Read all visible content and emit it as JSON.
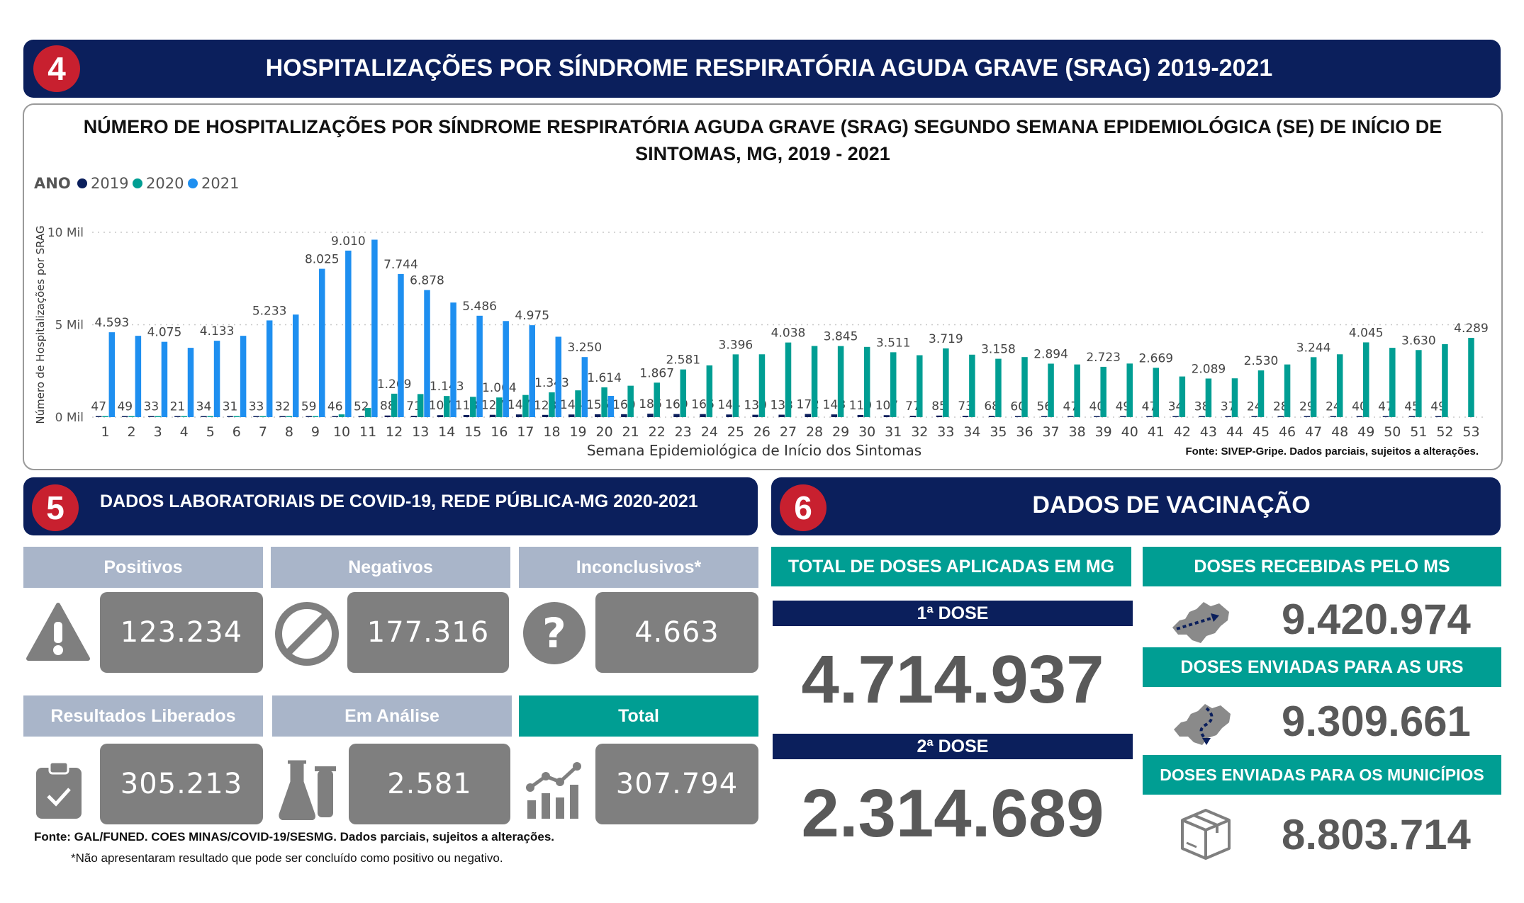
{
  "section4": {
    "number": "4",
    "title": "HOSPITALIZAÇÕES POR SÍNDROME RESPIRATÓRIA AGUDA GRAVE (SRAG) 2019-2021"
  },
  "chart_data": {
    "type": "bar",
    "title": "NÚMERO DE HOSPITALIZAÇÕES POR SÍNDROME RESPIRATÓRIA AGUDA GRAVE (SRAG) SEGUNDO SEMANA EPIDEMIOLÓGICA (SE) DE INÍCIO DE SINTOMAS, MG, 2019 - 2021",
    "legend_title": "ANO",
    "legend_position": "top-left",
    "xlabel": "Semana Epidemiológica de Início dos Sintomas",
    "ylabel": "Número de Hospitalizações por SRAG",
    "yticks": [
      "0 Mil",
      "5 Mil",
      "10 Mil"
    ],
    "ylim": [
      0,
      10000
    ],
    "grid": true,
    "source": "Fonte: SIVEP-Gripe. Dados parciais, sujeitos a alterações.",
    "categories": [
      "1",
      "2",
      "3",
      "4",
      "5",
      "6",
      "7",
      "8",
      "9",
      "10",
      "11",
      "12",
      "13",
      "14",
      "15",
      "16",
      "17",
      "18",
      "19",
      "20",
      "21",
      "22",
      "23",
      "24",
      "25",
      "26",
      "27",
      "28",
      "29",
      "30",
      "31",
      "32",
      "33",
      "34",
      "35",
      "36",
      "37",
      "38",
      "39",
      "40",
      "41",
      "42",
      "43",
      "44",
      "45",
      "46",
      "47",
      "48",
      "49",
      "50",
      "51",
      "52",
      "53"
    ],
    "series": [
      {
        "name": "2019",
        "color": "#0b1f5c",
        "values": [
          47,
          49,
          33,
          21,
          34,
          31,
          33,
          32,
          59,
          46,
          52,
          88,
          71,
          107,
          118,
          127,
          147,
          123,
          144,
          155,
          160,
          186,
          169,
          166,
          144,
          130,
          133,
          172,
          148,
          119,
          107,
          77,
          85,
          73,
          68,
          60,
          56,
          47,
          40,
          49,
          47,
          34,
          38,
          37,
          24,
          28,
          29,
          24,
          40,
          47,
          45,
          49,
          0
        ],
        "labels": [
          "47",
          "49",
          "33",
          "21",
          "34",
          "31",
          "33",
          "32",
          "59",
          "46",
          "52",
          "88",
          "71",
          "107",
          "118",
          "127",
          "147",
          "123",
          "144",
          "155",
          "160",
          "186",
          "169",
          "166",
          "144",
          "130",
          "133",
          "172",
          "148",
          "119",
          "107",
          "77",
          "85",
          "73",
          "68",
          "60",
          "56",
          "47",
          "40",
          "49",
          "47",
          "34",
          "38",
          "37",
          "24",
          "28",
          "29",
          "24",
          "40",
          "47",
          "45",
          "49",
          ""
        ]
      },
      {
        "name": "2020",
        "color": "#009e93",
        "values": [
          10,
          8,
          6,
          5,
          5,
          5,
          5,
          6,
          10,
          150,
          500,
          1269,
          1250,
          1143,
          1100,
          1064,
          1200,
          1343,
          1450,
          1614,
          1700,
          1867,
          2581,
          2800,
          3396,
          3400,
          4038,
          3850,
          3845,
          3800,
          3511,
          3350,
          3719,
          3380,
          3158,
          3250,
          2894,
          2850,
          2723,
          2900,
          2669,
          2200,
          2089,
          2100,
          2530,
          2850,
          3244,
          3400,
          4045,
          3750,
          3630,
          3950,
          4289
        ],
        "labels": [
          "",
          "",
          "",
          "",
          "",
          "",
          "",
          "",
          "",
          "",
          "",
          "1.269",
          "",
          "1.143",
          "",
          "1.064",
          "",
          "1.343",
          "",
          "1.614",
          "",
          "1.867",
          "2.581",
          "",
          "3.396",
          "",
          "4.038",
          "",
          "3.845",
          "",
          "3.511",
          "",
          "3.719",
          "",
          "3.158",
          "",
          "2.894",
          "",
          "2.723",
          "",
          "2.669",
          "",
          "2.089",
          "",
          "2.530",
          "",
          "3.244",
          "",
          "4.045",
          "",
          "3.630",
          "",
          "4.289"
        ]
      },
      {
        "name": "2021",
        "color": "#1e8ff0",
        "values": [
          4593,
          4400,
          4075,
          3750,
          4133,
          4400,
          5233,
          5550,
          8025,
          9010,
          9600,
          7744,
          6878,
          6200,
          5486,
          5200,
          4975,
          4350,
          3250,
          1150,
          0,
          0,
          0,
          0,
          0,
          0,
          0,
          0,
          0,
          0,
          0,
          0,
          0,
          0,
          0,
          0,
          0,
          0,
          0,
          0,
          0,
          0,
          0,
          0,
          0,
          0,
          0,
          0,
          0,
          0,
          0,
          0,
          0
        ],
        "labels": [
          "4.593",
          "",
          "4.075",
          "",
          "4.133",
          "",
          "5.233",
          "",
          "8.025",
          "9.010",
          "",
          "7.744",
          "6.878",
          "",
          "5.486",
          "",
          "4.975",
          "",
          "3.250",
          "",
          "",
          "",
          "",
          "",
          "",
          "",
          "",
          "",
          "",
          "",
          "",
          "",
          "",
          "",
          "",
          "",
          "",
          "",
          "",
          "",
          "",
          "",
          "",
          "",
          "",
          "",
          "",
          "",
          "",
          "",
          "",
          "",
          ""
        ]
      }
    ]
  },
  "section5": {
    "number": "5",
    "title": "DADOS LABORATORIAIS DE COVID-19, REDE PÚBLICA-MG 2020-2021",
    "cards": [
      {
        "label": "Positivos",
        "value": "123.234",
        "icon": "warning-icon"
      },
      {
        "label": "Negativos",
        "value": "177.316",
        "icon": "prohibited-icon"
      },
      {
        "label": "Inconclusivos*",
        "value": "4.663",
        "icon": "question-icon"
      },
      {
        "label": "Resultados Liberados",
        "value": "305.213",
        "icon": "clipboard-check-icon"
      },
      {
        "label": "Em Análise",
        "value": "2.581",
        "icon": "lab-flask-icon"
      },
      {
        "label": "Total",
        "value": "307.794",
        "icon": "growth-chart-icon"
      }
    ],
    "source": "Fonte: GAL/FUNED. COES MINAS/COVID-19/SESMG. Dados parciais, sujeitos a alterações.",
    "footnote": "*Não apresentaram resultado que pode ser concluído como positivo ou negativo."
  },
  "section6": {
    "number": "6",
    "title": "DADOS DE VACINAÇÃO",
    "total_header": "TOTAL DE DOSES APLICADAS EM MG",
    "dose1_label": "1ª DOSE",
    "dose1_value": "4.714.937",
    "dose2_label": "2ª DOSE",
    "dose2_value": "2.314.689",
    "received_header": "DOSES RECEBIDAS PELO MS",
    "received_value": "9.420.974",
    "urs_header": "DOSES ENVIADAS PARA AS URS",
    "urs_value": "9.309.661",
    "municipios_header": "DOSES ENVIADAS PARA OS MUNICÍPIOS",
    "municipios_value": "8.803.714"
  }
}
